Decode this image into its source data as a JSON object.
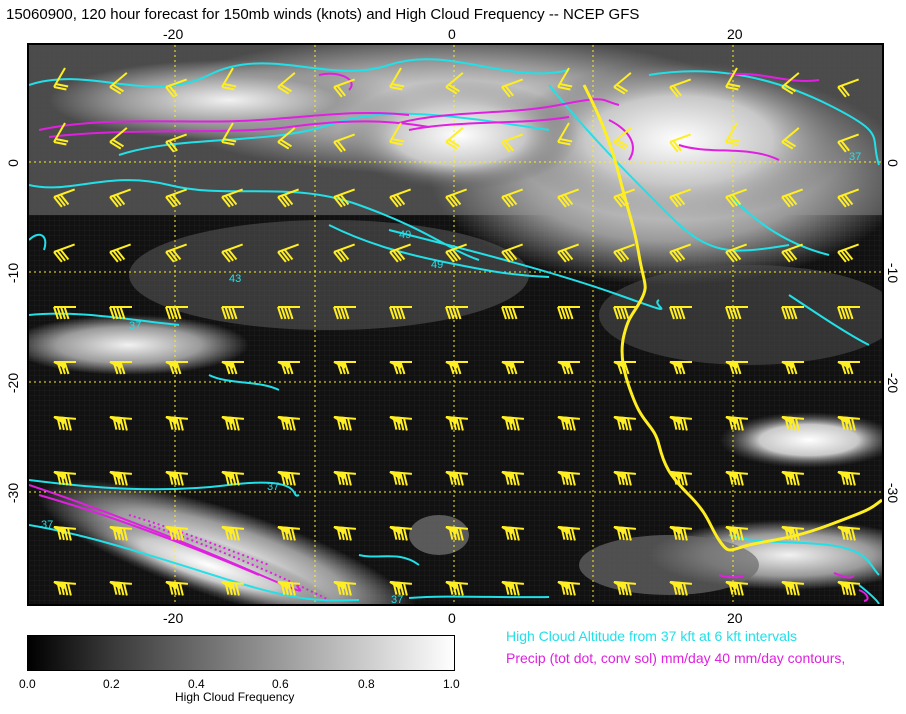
{
  "title": "15060900, 120 hour forecast for 150mb winds (knots) and High Cloud Frequency -- NCEP GFS",
  "map": {
    "lon_ticks": [
      "-20",
      "0",
      "20"
    ],
    "lat_ticks": [
      "0",
      "-10",
      "-20",
      "-30"
    ],
    "colors": {
      "cloud_contour": "#22e0e8",
      "precip_contour": "#e020e0",
      "wind_barb": "#ffee22",
      "coastline": "#ffee22"
    },
    "contour_labels": [
      "49",
      "49",
      "43",
      "37",
      "37",
      "37",
      "37",
      "37"
    ]
  },
  "colorbar": {
    "title": "High Cloud Frequency",
    "ticks": [
      "0.0",
      "0.2",
      "0.4",
      "0.6",
      "0.8",
      "1.0"
    ]
  },
  "legend": {
    "cloud_altitude": "High Cloud Altitude from 37 kft at 6 kft intervals",
    "precip": "Precip (tot dot, conv sol) mm/day 40 mm/day contours,"
  }
}
